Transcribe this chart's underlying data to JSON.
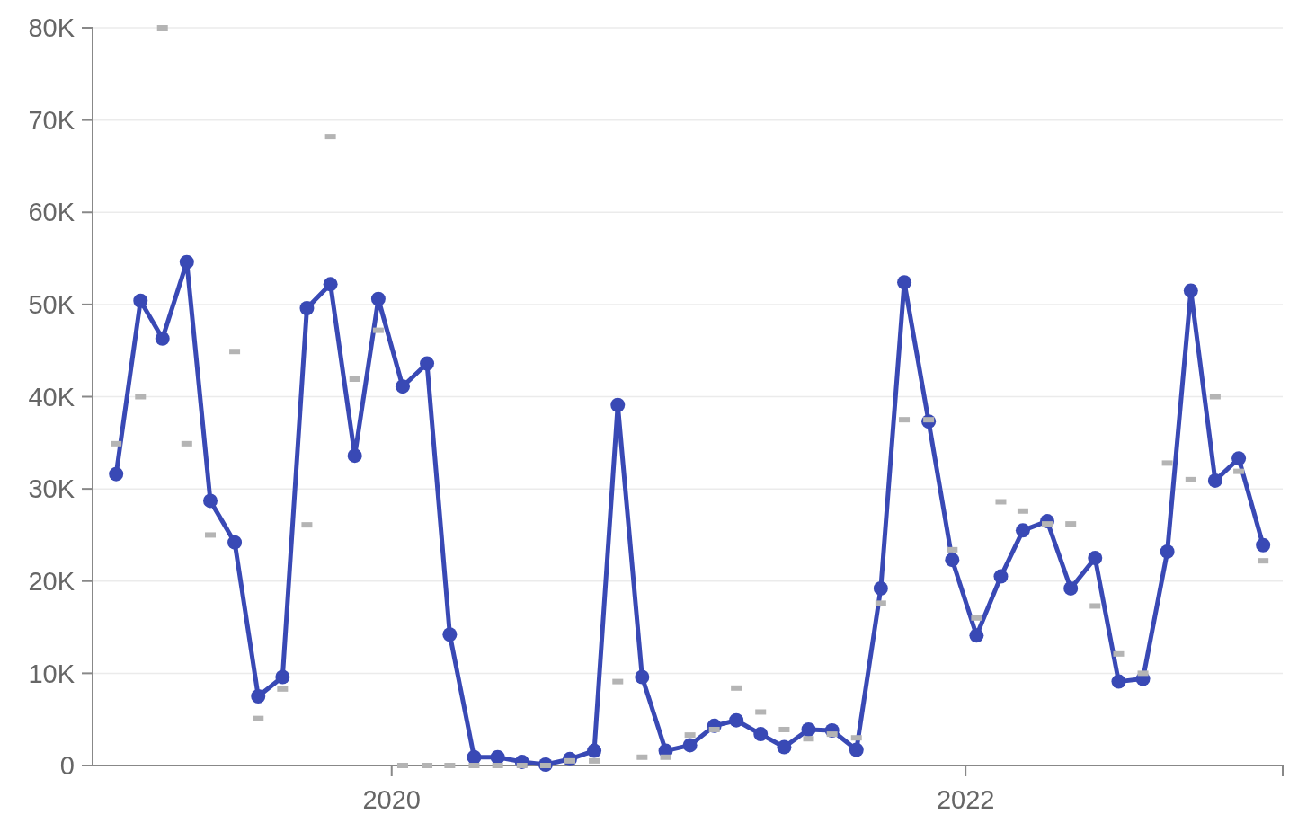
{
  "chart_data": {
    "type": "line",
    "x": [
      "2019-01-15",
      "2019-02-15",
      "2019-03-15",
      "2019-04-15",
      "2019-05-15",
      "2019-06-15",
      "2019-07-15",
      "2019-08-15",
      "2019-09-15",
      "2019-10-15",
      "2019-11-15",
      "2019-12-15",
      "2020-01-15",
      "2020-02-15",
      "2020-03-15",
      "2020-04-15",
      "2020-05-15",
      "2020-06-15",
      "2020-07-15",
      "2020-08-15",
      "2020-09-15",
      "2020-10-15",
      "2020-11-15",
      "2020-12-15",
      "2021-01-15",
      "2021-02-15",
      "2021-03-15",
      "2021-04-15",
      "2021-05-15",
      "2021-06-15",
      "2021-07-15",
      "2021-08-15",
      "2021-09-15",
      "2021-10-15",
      "2021-11-15",
      "2021-12-15",
      "2022-01-15",
      "2022-02-15",
      "2022-03-15",
      "2022-04-15",
      "2022-05-15",
      "2022-06-15",
      "2022-07-15",
      "2022-08-15",
      "2022-09-15",
      "2022-10-15",
      "2022-11-15",
      "2022-12-15",
      "2023-01-15"
    ],
    "series": [
      {
        "type": "line",
        "marker": "circle",
        "color": "#3949b5",
        "values": [
          31600,
          50400,
          46300,
          54600,
          28700,
          24200,
          7500,
          9600,
          49600,
          52200,
          33600,
          50600,
          41100,
          43600,
          14200,
          900,
          900,
          400,
          100,
          700,
          1600,
          39100,
          9600,
          1600,
          2200,
          4300,
          4900,
          3400,
          2000,
          3900,
          3800,
          1700,
          19200,
          52400,
          37300,
          22300,
          14100,
          20500,
          25500,
          26500,
          19200,
          22500,
          9100,
          9400,
          23200,
          51500,
          30900,
          33300,
          23900
        ]
      },
      {
        "type": "scatter",
        "marker": "square",
        "color": "#b4b4b4",
        "values": [
          34900,
          40000,
          80000,
          34900,
          25000,
          44900,
          5100,
          8300,
          26100,
          68200,
          41900,
          47200,
          0,
          0,
          0,
          0,
          0,
          0,
          0,
          500,
          500,
          9100,
          900,
          900,
          3300,
          3900,
          8400,
          5800,
          3900,
          2900,
          3400,
          3000,
          17600,
          37500,
          37500,
          23400,
          16000,
          28600,
          27600,
          26200,
          26200,
          17300,
          12100,
          10000,
          32800,
          31000,
          40000,
          31900,
          22200
        ]
      }
    ],
    "xlim": [
      "2018-12-16",
      "2023-02-09"
    ],
    "xticks": [
      {
        "value": "2020-01-01",
        "label": "2020"
      },
      {
        "value": "2022-01-01",
        "label": "2022"
      }
    ],
    "ylim": [
      0,
      80000
    ],
    "yticks": [
      {
        "value": 0,
        "label": "0"
      },
      {
        "value": 10000,
        "label": "10K"
      },
      {
        "value": 20000,
        "label": "20K"
      },
      {
        "value": 30000,
        "label": "30K"
      },
      {
        "value": 40000,
        "label": "40K"
      },
      {
        "value": 50000,
        "label": "50K"
      },
      {
        "value": 60000,
        "label": "60K"
      },
      {
        "value": 70000,
        "label": "70K"
      },
      {
        "value": 80000,
        "label": "80K"
      }
    ],
    "grid": "y"
  }
}
